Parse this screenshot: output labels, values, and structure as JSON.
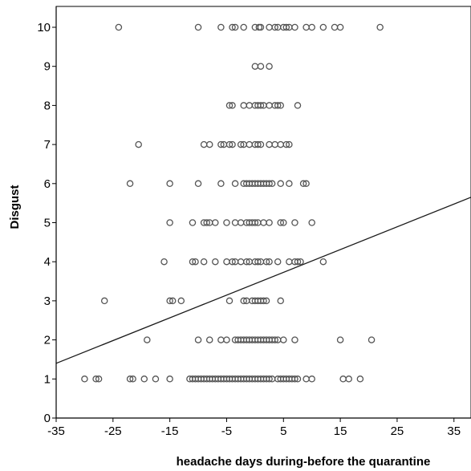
{
  "chart_data": {
    "type": "scatter",
    "title": "",
    "xlabel": "headache days during-before the quarantine",
    "ylabel": "Disgust",
    "xlim": [
      -35,
      38
    ],
    "ylim": [
      0,
      10.5
    ],
    "x_ticks": [
      -35,
      -25,
      -15,
      -5,
      5,
      15,
      25,
      35
    ],
    "y_ticks": [
      0,
      1,
      2,
      3,
      4,
      5,
      6,
      7,
      8,
      9,
      10
    ],
    "grid": false,
    "legend": "none",
    "colors": {
      "marker": "#555555",
      "fit_line": "#1a1a1a",
      "axis": "#000000"
    },
    "fit_line": {
      "type": "linear",
      "x": [
        -35,
        38
      ],
      "y": [
        1.4,
        5.65
      ]
    },
    "series": [
      {
        "points": [
          [
            -24,
            10
          ],
          [
            -10,
            10
          ],
          [
            -6,
            10
          ],
          [
            -4,
            10
          ],
          [
            -3.5,
            10
          ],
          [
            -2,
            10
          ],
          [
            0,
            10
          ],
          [
            0.7,
            10
          ],
          [
            1,
            10
          ],
          [
            2.5,
            10
          ],
          [
            3.5,
            10
          ],
          [
            4,
            10
          ],
          [
            5,
            10
          ],
          [
            5.5,
            10
          ],
          [
            6,
            10
          ],
          [
            7,
            10
          ],
          [
            9,
            10
          ],
          [
            10,
            10
          ],
          [
            12,
            10
          ],
          [
            14,
            10
          ],
          [
            15,
            10
          ],
          [
            22,
            10
          ],
          [
            0,
            9
          ],
          [
            1,
            9
          ],
          [
            2.5,
            9
          ],
          [
            -4.5,
            8
          ],
          [
            -4,
            8
          ],
          [
            -2,
            8
          ],
          [
            -1,
            8
          ],
          [
            0,
            8
          ],
          [
            0.5,
            8
          ],
          [
            1,
            8
          ],
          [
            1.5,
            8
          ],
          [
            2.5,
            8
          ],
          [
            3.5,
            8
          ],
          [
            4,
            8
          ],
          [
            4.5,
            8
          ],
          [
            7.5,
            8
          ],
          [
            -20.5,
            7
          ],
          [
            -9,
            7
          ],
          [
            -8,
            7
          ],
          [
            -6,
            7
          ],
          [
            -5.5,
            7
          ],
          [
            -4.5,
            7
          ],
          [
            -4,
            7
          ],
          [
            -2.5,
            7
          ],
          [
            -2,
            7
          ],
          [
            -1,
            7
          ],
          [
            0,
            7
          ],
          [
            0.5,
            7
          ],
          [
            1,
            7
          ],
          [
            2.5,
            7
          ],
          [
            3.5,
            7
          ],
          [
            4.5,
            7
          ],
          [
            5.5,
            7
          ],
          [
            6,
            7
          ],
          [
            -22,
            6
          ],
          [
            -15,
            6
          ],
          [
            -10,
            6
          ],
          [
            -6,
            6
          ],
          [
            -3.5,
            6
          ],
          [
            -2,
            6
          ],
          [
            -1.5,
            6
          ],
          [
            -1,
            6
          ],
          [
            -0.5,
            6
          ],
          [
            0,
            6
          ],
          [
            0.5,
            6
          ],
          [
            1,
            6
          ],
          [
            1.5,
            6
          ],
          [
            2,
            6
          ],
          [
            2.5,
            6
          ],
          [
            3,
            6
          ],
          [
            4.5,
            6
          ],
          [
            6,
            6
          ],
          [
            8.5,
            6
          ],
          [
            9,
            6
          ],
          [
            -15,
            5
          ],
          [
            -11,
            5
          ],
          [
            -9,
            5
          ],
          [
            -8.5,
            5
          ],
          [
            -8,
            5
          ],
          [
            -7,
            5
          ],
          [
            -5,
            5
          ],
          [
            -3.5,
            5
          ],
          [
            -2.5,
            5
          ],
          [
            -1.5,
            5
          ],
          [
            -1,
            5
          ],
          [
            -0.5,
            5
          ],
          [
            0,
            5
          ],
          [
            0.5,
            5
          ],
          [
            1.5,
            5
          ],
          [
            2.5,
            5
          ],
          [
            4.5,
            5
          ],
          [
            5,
            5
          ],
          [
            7,
            5
          ],
          [
            10,
            5
          ],
          [
            -16,
            4
          ],
          [
            -11,
            4
          ],
          [
            -10.5,
            4
          ],
          [
            -9,
            4
          ],
          [
            -7,
            4
          ],
          [
            -5,
            4
          ],
          [
            -4,
            4
          ],
          [
            -3.5,
            4
          ],
          [
            -2.5,
            4
          ],
          [
            -1.5,
            4
          ],
          [
            -1,
            4
          ],
          [
            0,
            4
          ],
          [
            0.5,
            4
          ],
          [
            1,
            4
          ],
          [
            2,
            4
          ],
          [
            2.5,
            4
          ],
          [
            4,
            4
          ],
          [
            6,
            4
          ],
          [
            7,
            4
          ],
          [
            7.5,
            4
          ],
          [
            8,
            4
          ],
          [
            12,
            4
          ],
          [
            -26.5,
            3
          ],
          [
            -15,
            3
          ],
          [
            -14.5,
            3
          ],
          [
            -13,
            3
          ],
          [
            -4.5,
            3
          ],
          [
            -2,
            3
          ],
          [
            -1.5,
            3
          ],
          [
            -0.5,
            3
          ],
          [
            0,
            3
          ],
          [
            0.5,
            3
          ],
          [
            1,
            3
          ],
          [
            1.5,
            3
          ],
          [
            2,
            3
          ],
          [
            4.5,
            3
          ],
          [
            -19,
            2
          ],
          [
            -10,
            2
          ],
          [
            -8,
            2
          ],
          [
            -6,
            2
          ],
          [
            -5,
            2
          ],
          [
            -3.5,
            2
          ],
          [
            -3,
            2
          ],
          [
            -2.5,
            2
          ],
          [
            -2,
            2
          ],
          [
            -1.5,
            2
          ],
          [
            -1,
            2
          ],
          [
            -0.5,
            2
          ],
          [
            0,
            2
          ],
          [
            0.5,
            2
          ],
          [
            1,
            2
          ],
          [
            1.5,
            2
          ],
          [
            2,
            2
          ],
          [
            2.5,
            2
          ],
          [
            3,
            2
          ],
          [
            3.5,
            2
          ],
          [
            4,
            2
          ],
          [
            5,
            2
          ],
          [
            7,
            2
          ],
          [
            15,
            2
          ],
          [
            20.5,
            2
          ],
          [
            -30,
            1
          ],
          [
            -28,
            1
          ],
          [
            -27.5,
            1
          ],
          [
            -22,
            1
          ],
          [
            -21.5,
            1
          ],
          [
            -19.5,
            1
          ],
          [
            -17.5,
            1
          ],
          [
            -15,
            1
          ],
          [
            -11.5,
            1
          ],
          [
            -11,
            1
          ],
          [
            -10.5,
            1
          ],
          [
            -10,
            1
          ],
          [
            -9.5,
            1
          ],
          [
            -9,
            1
          ],
          [
            -8.5,
            1
          ],
          [
            -8,
            1
          ],
          [
            -7.5,
            1
          ],
          [
            -7,
            1
          ],
          [
            -6.5,
            1
          ],
          [
            -6,
            1
          ],
          [
            -5.5,
            1
          ],
          [
            -5,
            1
          ],
          [
            -4.5,
            1
          ],
          [
            -4,
            1
          ],
          [
            -3.5,
            1
          ],
          [
            -3,
            1
          ],
          [
            -2.5,
            1
          ],
          [
            -2,
            1
          ],
          [
            -1.5,
            1
          ],
          [
            -1,
            1
          ],
          [
            -0.5,
            1
          ],
          [
            0,
            1
          ],
          [
            0.5,
            1
          ],
          [
            1,
            1
          ],
          [
            1.5,
            1
          ],
          [
            2,
            1
          ],
          [
            2.5,
            1
          ],
          [
            3,
            1
          ],
          [
            4,
            1
          ],
          [
            4.5,
            1
          ],
          [
            5,
            1
          ],
          [
            5.5,
            1
          ],
          [
            6,
            1
          ],
          [
            6.5,
            1
          ],
          [
            7,
            1
          ],
          [
            7.5,
            1
          ],
          [
            9,
            1
          ],
          [
            10,
            1
          ],
          [
            15.5,
            1
          ],
          [
            16.5,
            1
          ],
          [
            18.5,
            1
          ]
        ]
      }
    ]
  }
}
